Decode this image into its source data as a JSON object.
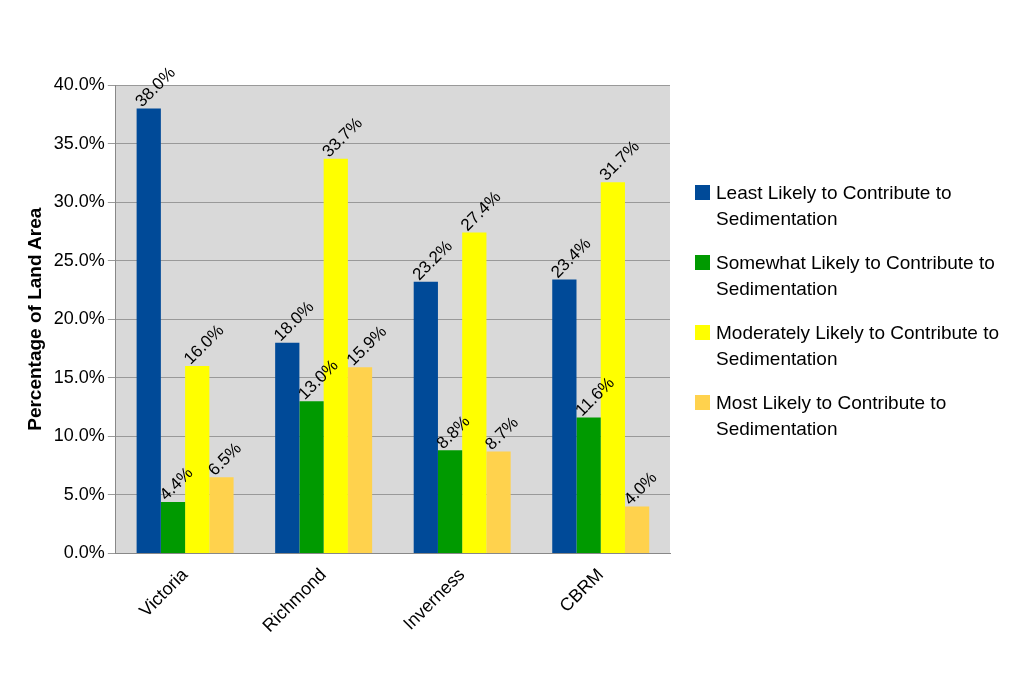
{
  "chart_data": {
    "type": "bar",
    "ylabel": "Percentage of Land Area",
    "categories": [
      "Victoria",
      "Richmond",
      "Inverness",
      "CBRM"
    ],
    "series": [
      {
        "name": "Least Likely to Contribute to Sedimentation",
        "color": "#004a98",
        "values": [
          38.0,
          18.0,
          23.2,
          23.4
        ],
        "value_labels": [
          "38.0%",
          "18.0%",
          "23.2%",
          "23.4%"
        ]
      },
      {
        "name": "Somewhat Likely to Contribute to Sedimentation",
        "color": "#009a00",
        "values": [
          4.4,
          13.0,
          8.8,
          11.6
        ],
        "value_labels": [
          "4.4%",
          "13.0%",
          "8.8%",
          "11.6%"
        ]
      },
      {
        "name": "Moderately Likely to Contribute to Sedimentation",
        "color": "#ffff00",
        "values": [
          16.0,
          33.7,
          27.4,
          31.7
        ],
        "value_labels": [
          "16.0%",
          "33.7%",
          "27.4%",
          "31.7%"
        ]
      },
      {
        "name": "Most Likely to Contribute to Sedimentation",
        "color": "#ffd24d",
        "values": [
          6.5,
          15.9,
          8.7,
          4.0
        ],
        "value_labels": [
          "6.5%",
          "15.9%",
          "8.7%",
          "4.0%"
        ]
      }
    ],
    "ylim": [
      0,
      40
    ],
    "yticks": [
      {
        "value": 0,
        "label": "0.0%"
      },
      {
        "value": 5,
        "label": "5.0%"
      },
      {
        "value": 10,
        "label": "10.0%"
      },
      {
        "value": 15,
        "label": "15.0%"
      },
      {
        "value": 20,
        "label": "20.0%"
      },
      {
        "value": 25,
        "label": "25.0%"
      },
      {
        "value": 30,
        "label": "30.0%"
      },
      {
        "value": 35,
        "label": "35.0%"
      },
      {
        "value": 40,
        "label": "40.0%"
      }
    ],
    "grid": "y",
    "legend": "right"
  }
}
